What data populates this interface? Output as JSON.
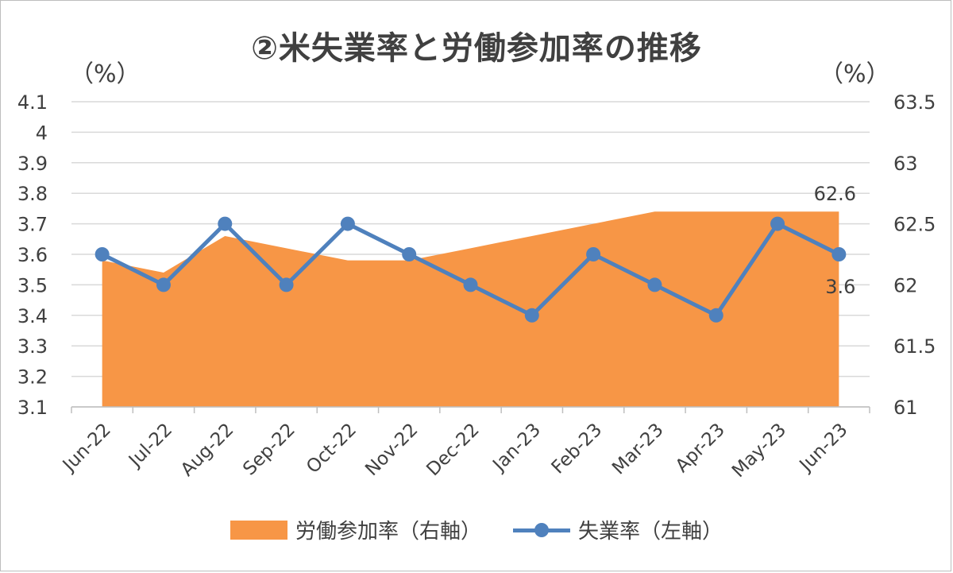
{
  "chart_data": {
    "type": "line",
    "title": "②米失業率と労働参加率の推移",
    "left_axis_unit": "（%）",
    "right_axis_unit": "（%）",
    "categories": [
      "Jun-22",
      "Jul-22",
      "Aug-22",
      "Sep-22",
      "Oct-22",
      "Nov-22",
      "Dec-22",
      "Jan-23",
      "Feb-23",
      "Mar-23",
      "Apr-23",
      "May-23",
      "Jun-23"
    ],
    "y_left": {
      "min": 3.1,
      "max": 4.1,
      "ticks": [
        "4.1",
        "4",
        "3.9",
        "3.8",
        "3.7",
        "3.6",
        "3.5",
        "3.4",
        "3.3",
        "3.2",
        "3.1"
      ]
    },
    "y_right": {
      "min": 61,
      "max": 63.5,
      "ticks": [
        "63.5",
        "63",
        "62.5",
        "62",
        "61.5",
        "61"
      ]
    },
    "grid": true,
    "legend_position": "bottom",
    "series": [
      {
        "name": "労働参加率（右軸）",
        "type": "area",
        "axis": "right",
        "color": "#F79646",
        "values": [
          62.2,
          62.1,
          62.4,
          62.3,
          62.2,
          62.2,
          62.3,
          62.4,
          62.5,
          62.6,
          62.6,
          62.6,
          62.6
        ]
      },
      {
        "name": "失業率（左軸）",
        "type": "line",
        "axis": "left",
        "color": "#4F81BD",
        "values": [
          3.6,
          3.5,
          3.7,
          3.5,
          3.7,
          3.6,
          3.5,
          3.4,
          3.6,
          3.5,
          3.4,
          3.7,
          3.6
        ]
      }
    ],
    "annotations": [
      {
        "series": "労働参加率（右軸）",
        "index": 12,
        "text": "62.6"
      },
      {
        "series": "失業率（左軸）",
        "index": 12,
        "text": "3.6"
      }
    ]
  }
}
